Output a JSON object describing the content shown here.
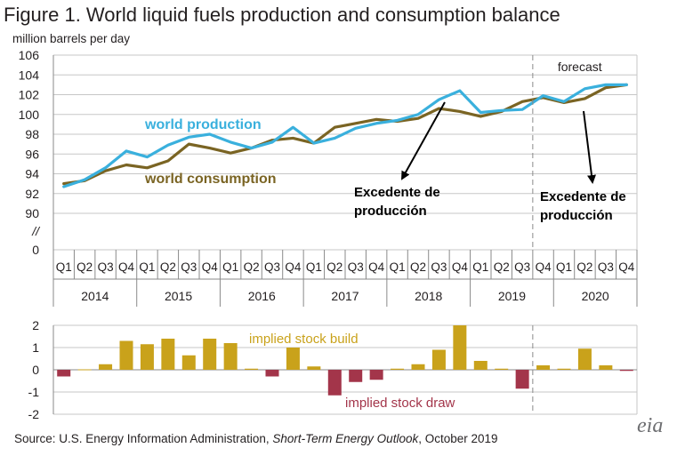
{
  "figure": {
    "title": "Figure 1. World liquid fuels production and consumption balance",
    "unit": "million barrels per day",
    "source_prefix": "Source: U.S. Energy Information Administration, ",
    "source_publication": "Short-Term Energy Outlook",
    "source_suffix": ", October 2019",
    "logo_text": "eia"
  },
  "colors": {
    "production": "#3ab0dd",
    "consumption": "#7a6423",
    "build": "#c9a21b",
    "draw": "#a3354a",
    "grid": "#c7c7c7",
    "annotation_arrow": "#000000"
  },
  "chart_data": [
    {
      "type": "line",
      "categories": [
        "Q1",
        "Q2",
        "Q3",
        "Q4",
        "Q1",
        "Q2",
        "Q3",
        "Q4",
        "Q1",
        "Q2",
        "Q3",
        "Q4",
        "Q1",
        "Q2",
        "Q3",
        "Q4",
        "Q1",
        "Q2",
        "Q3",
        "Q4",
        "Q1",
        "Q2",
        "Q3",
        "Q4",
        "Q1",
        "Q2",
        "Q3",
        "Q4"
      ],
      "years": [
        "2014",
        "2015",
        "2016",
        "2017",
        "2018",
        "2019",
        "2020"
      ],
      "yticks": [
        "106",
        "104",
        "102",
        "100",
        "98",
        "96",
        "94",
        "92",
        "90",
        "//",
        "0"
      ],
      "ylim": [
        90,
        106
      ],
      "axis_break": true,
      "forecast_start_index": 23,
      "series": [
        {
          "name": "world production",
          "values": [
            92.7,
            93.4,
            94.6,
            96.3,
            95.7,
            96.9,
            97.7,
            98.0,
            97.2,
            96.6,
            97.2,
            98.7,
            97.1,
            97.6,
            98.6,
            99.1,
            99.4,
            100.0,
            101.5,
            102.4,
            100.2,
            100.4,
            100.5,
            101.9,
            101.3,
            102.6,
            103.0,
            103.0
          ]
        },
        {
          "name": "world consumption",
          "values": [
            93.0,
            93.3,
            94.3,
            94.9,
            94.6,
            95.3,
            97.0,
            96.6,
            96.1,
            96.6,
            97.4,
            97.6,
            97.1,
            98.7,
            99.1,
            99.5,
            99.3,
            99.6,
            100.6,
            100.3,
            99.8,
            100.3,
            101.3,
            101.7,
            101.2,
            101.6,
            102.7,
            103.0
          ]
        }
      ],
      "labels": {
        "forecast": "forecast"
      },
      "annotations": [
        "Excedente de producción",
        "Excedente de producción"
      ],
      "grid": true
    },
    {
      "type": "bar",
      "categories": [
        "Q1",
        "Q2",
        "Q3",
        "Q4",
        "Q1",
        "Q2",
        "Q3",
        "Q4",
        "Q1",
        "Q2",
        "Q3",
        "Q4",
        "Q1",
        "Q2",
        "Q3",
        "Q4",
        "Q1",
        "Q2",
        "Q3",
        "Q4",
        "Q1",
        "Q2",
        "Q3",
        "Q4",
        "Q1",
        "Q2",
        "Q3",
        "Q4"
      ],
      "values": [
        -0.3,
        0.02,
        0.25,
        1.3,
        1.15,
        1.4,
        0.65,
        1.4,
        1.2,
        0.05,
        -0.3,
        1.0,
        0.15,
        -1.15,
        -0.55,
        -0.45,
        0.05,
        0.25,
        0.9,
        2.0,
        0.4,
        0.05,
        -0.85,
        0.2,
        0.05,
        0.95,
        0.2,
        -0.05
      ],
      "yticks": [
        "2",
        "1",
        "0",
        "-1",
        "-2"
      ],
      "ylim": [
        -2,
        2
      ],
      "labels": {
        "build": "implied stock build",
        "draw": "implied stock draw"
      },
      "grid": true
    }
  ]
}
